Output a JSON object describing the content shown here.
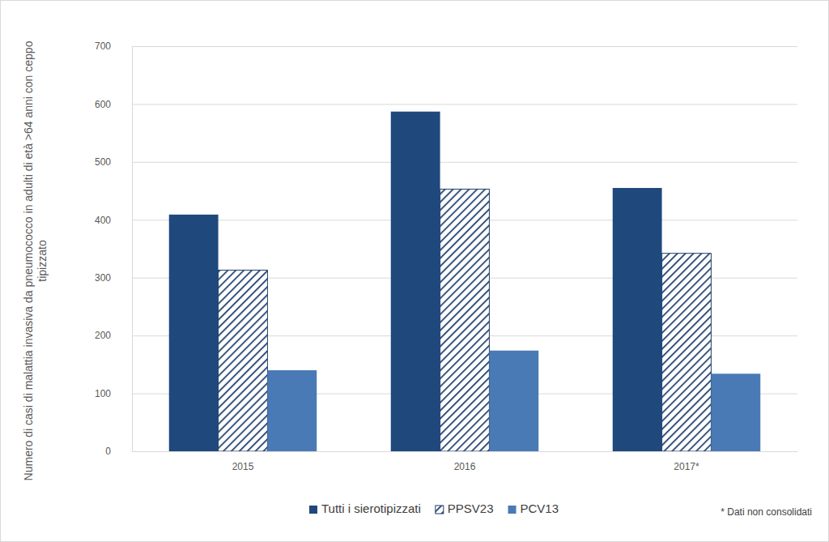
{
  "chart_data": {
    "type": "bar",
    "y_label": "Numero di casi di malattia invasiva da pneumococco in adulti di età >64 anni con ceppo tipizzato",
    "categories": [
      "2015",
      "2016",
      "2017*"
    ],
    "series": [
      {
        "name": "Tutti i sierotipizzati",
        "color": "#1f497d",
        "values": [
          409,
          587,
          455
        ]
      },
      {
        "name": "PPSV23",
        "color": "#1f3f6e",
        "line_style": "hatched",
        "values": [
          313,
          453,
          342
        ]
      },
      {
        "name": "PCV13",
        "color": "#4a7ab5",
        "values": [
          140,
          174,
          134
        ]
      }
    ],
    "ylim": [
      0,
      700
    ],
    "yticks": [
      0,
      100,
      200,
      300,
      400,
      500,
      600,
      700
    ],
    "grid": true,
    "legend": "bottom",
    "annotation": "* Dati non consolidati"
  }
}
